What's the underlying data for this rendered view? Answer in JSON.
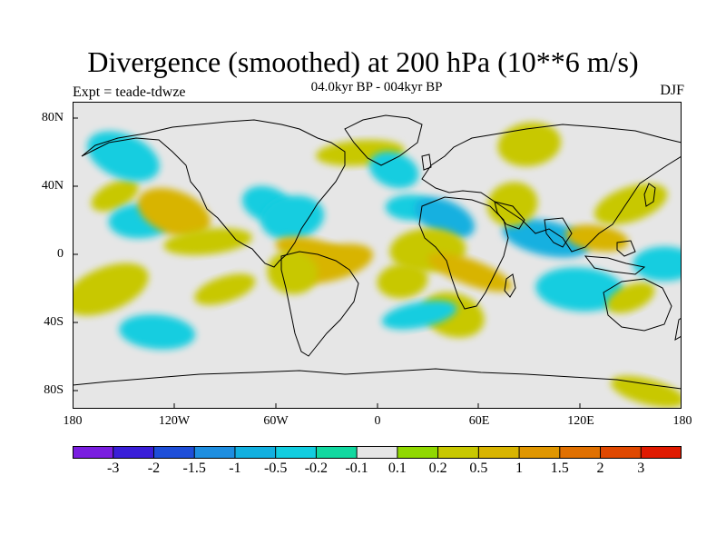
{
  "title": "Divergence (smoothed) at 200 hPa (10**6 m/s)",
  "subtitle": "04.0kyr BP - 004kyr BP",
  "experiment": "Expt = teade-tdwze",
  "season": "DJF",
  "lat_labels": [
    "80N",
    "40N",
    "0",
    "40S",
    "80S"
  ],
  "lon_labels": [
    "180",
    "120W",
    "60W",
    "0",
    "60E",
    "120E",
    "180"
  ],
  "colorbar": {
    "labels": [
      "-3",
      "-2",
      "-1.5",
      "-1",
      "-0.5",
      "-0.2",
      "-0.1",
      "0.1",
      "0.2",
      "0.5",
      "1",
      "1.5",
      "2",
      "3"
    ],
    "colors": [
      "#7a1ee0",
      "#3a1ed8",
      "#1e4ed8",
      "#1e8ee0",
      "#12b0e0",
      "#12cde0",
      "#12d8a0",
      "#e6e6e6",
      "#90d800",
      "#c8c800",
      "#d8b400",
      "#e09600",
      "#e07000",
      "#e04800",
      "#e01a00"
    ]
  },
  "chart_data": {
    "type": "heatmap",
    "title": "Divergence (smoothed) at 200 hPa (10**6 m/s)",
    "subtitle": "04.0kyr BP - 004kyr BP",
    "projection": "cylindrical equidistant",
    "x_range": [
      -180,
      180
    ],
    "y_range": [
      -90,
      90
    ],
    "units": "10**6 m/s",
    "contour_levels": [
      -3,
      -2,
      -1.5,
      -1,
      -0.5,
      -0.2,
      -0.1,
      0.1,
      0.2,
      0.5,
      1,
      1.5,
      2,
      3
    ],
    "features": [
      {
        "lon": -155,
        "lat": 35,
        "value": 0.3
      },
      {
        "lon": -140,
        "lat": 20,
        "value": -0.3
      },
      {
        "lon": -120,
        "lat": 25,
        "value": 0.5
      },
      {
        "lon": -100,
        "lat": 8,
        "value": 0.4
      },
      {
        "lon": -65,
        "lat": 30,
        "value": -0.3
      },
      {
        "lon": -50,
        "lat": 22,
        "value": -0.3
      },
      {
        "lon": -38,
        "lat": 2,
        "value": 0.8
      },
      {
        "lon": -28,
        "lat": -5,
        "value": 0.6
      },
      {
        "lon": -50,
        "lat": -10,
        "value": 0.3
      },
      {
        "lon": -90,
        "lat": -20,
        "value": 0.3
      },
      {
        "lon": -130,
        "lat": -45,
        "value": -0.3
      },
      {
        "lon": -160,
        "lat": -20,
        "value": 0.3
      },
      {
        "lon": 20,
        "lat": 28,
        "value": -0.4
      },
      {
        "lon": 40,
        "lat": 22,
        "value": -0.6
      },
      {
        "lon": 30,
        "lat": 3,
        "value": 0.4
      },
      {
        "lon": 55,
        "lat": -10,
        "value": 0.9
      },
      {
        "lon": 15,
        "lat": -15,
        "value": 0.3
      },
      {
        "lon": 45,
        "lat": -35,
        "value": 0.3
      },
      {
        "lon": 25,
        "lat": -35,
        "value": -0.3
      },
      {
        "lon": 100,
        "lat": 10,
        "value": -0.6
      },
      {
        "lon": 80,
        "lat": 30,
        "value": 0.4
      },
      {
        "lon": 130,
        "lat": 10,
        "value": 0.5
      },
      {
        "lon": 150,
        "lat": 30,
        "value": 0.3
      },
      {
        "lon": 120,
        "lat": -20,
        "value": -0.3
      },
      {
        "lon": 150,
        "lat": -25,
        "value": 0.4
      },
      {
        "lon": 170,
        "lat": -5,
        "value": -0.3
      },
      {
        "lon": -150,
        "lat": 58,
        "value": -0.3
      },
      {
        "lon": -10,
        "lat": 60,
        "value": 0.3
      },
      {
        "lon": 10,
        "lat": 50,
        "value": -0.3
      },
      {
        "lon": 90,
        "lat": 65,
        "value": 0.3
      },
      {
        "lon": 160,
        "lat": -80,
        "value": 0.3
      }
    ]
  }
}
